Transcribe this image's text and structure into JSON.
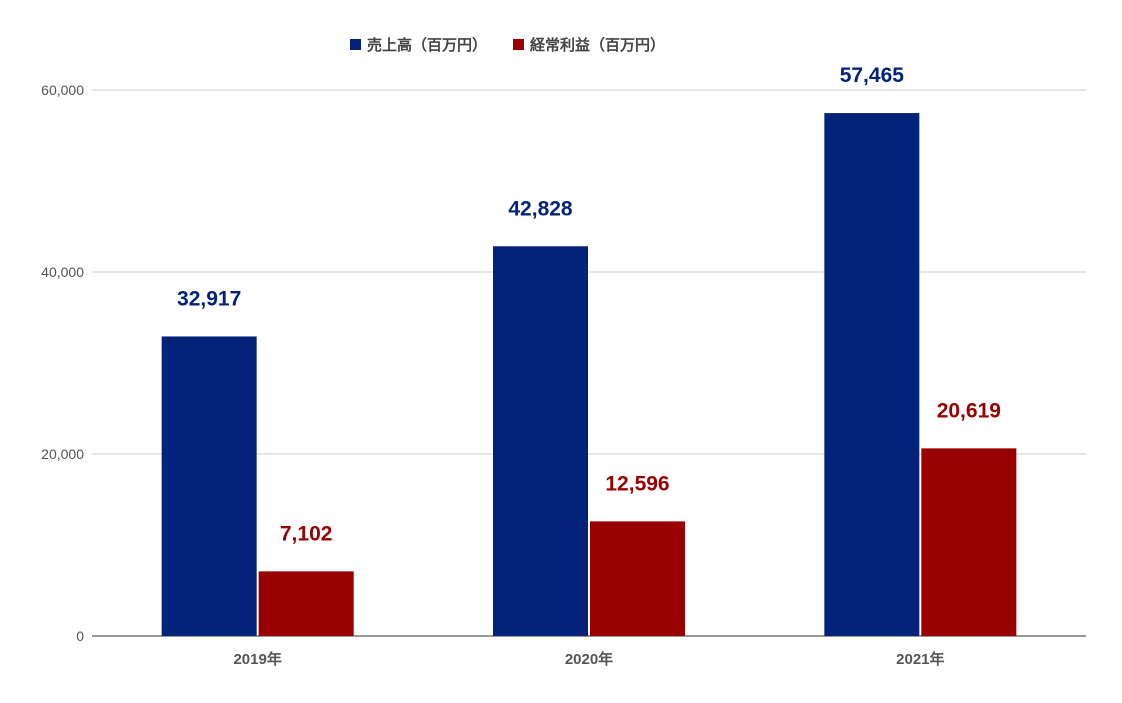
{
  "chart_data": {
    "type": "bar",
    "categories": [
      "2019年",
      "2020年",
      "2021年"
    ],
    "series": [
      {
        "name": "売上高（百万円）",
        "values": [
          32917,
          42828,
          57465
        ],
        "color": "#03237a",
        "labels": [
          "32,917",
          "42,828",
          "57,465"
        ]
      },
      {
        "name": "経常利益（百万円）",
        "values": [
          7102,
          12596,
          20619
        ],
        "color": "#990000",
        "labels": [
          "7,102",
          "12,596",
          "20,619"
        ]
      }
    ],
    "ylim": [
      0,
      60000
    ],
    "yticks": [
      0,
      20000,
      40000,
      60000
    ],
    "ytick_labels": [
      "0",
      "20,000",
      "40,000",
      "60,000"
    ],
    "grid": true,
    "legend_position": "top-center",
    "title": "",
    "xlabel": "",
    "ylabel": ""
  }
}
